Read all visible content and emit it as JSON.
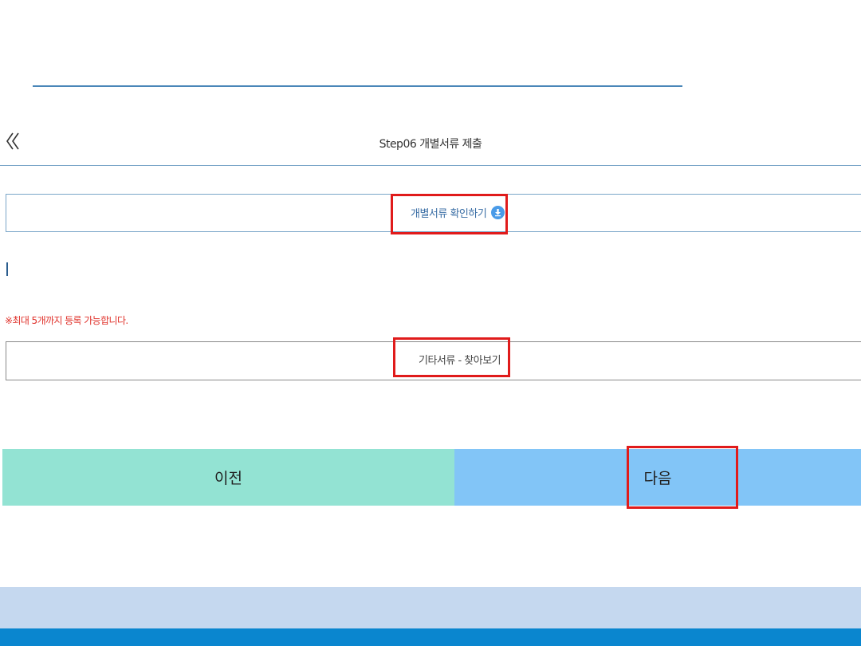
{
  "header": {
    "back_icon": "double-chevron-left-icon",
    "title": "Step06 개별서류 제출"
  },
  "documents": {
    "check_button_label": "개별서류 확인하기",
    "download_icon": "download-icon"
  },
  "upload": {
    "notice": "※최대 5개까지 등록 가능합니다.",
    "browse_label": "기타서류 - 찾아보기"
  },
  "nav": {
    "prev_label": "이전",
    "next_label": "다음"
  },
  "colors": {
    "accent_line": "#4a86b8",
    "prev_button": "#93e3d3",
    "next_button": "#82c5f7",
    "notice_text": "#e0322b",
    "highlight_box": "#e01b1b",
    "footer_light": "#c5d8ef",
    "footer_dark": "#0a86cf"
  }
}
